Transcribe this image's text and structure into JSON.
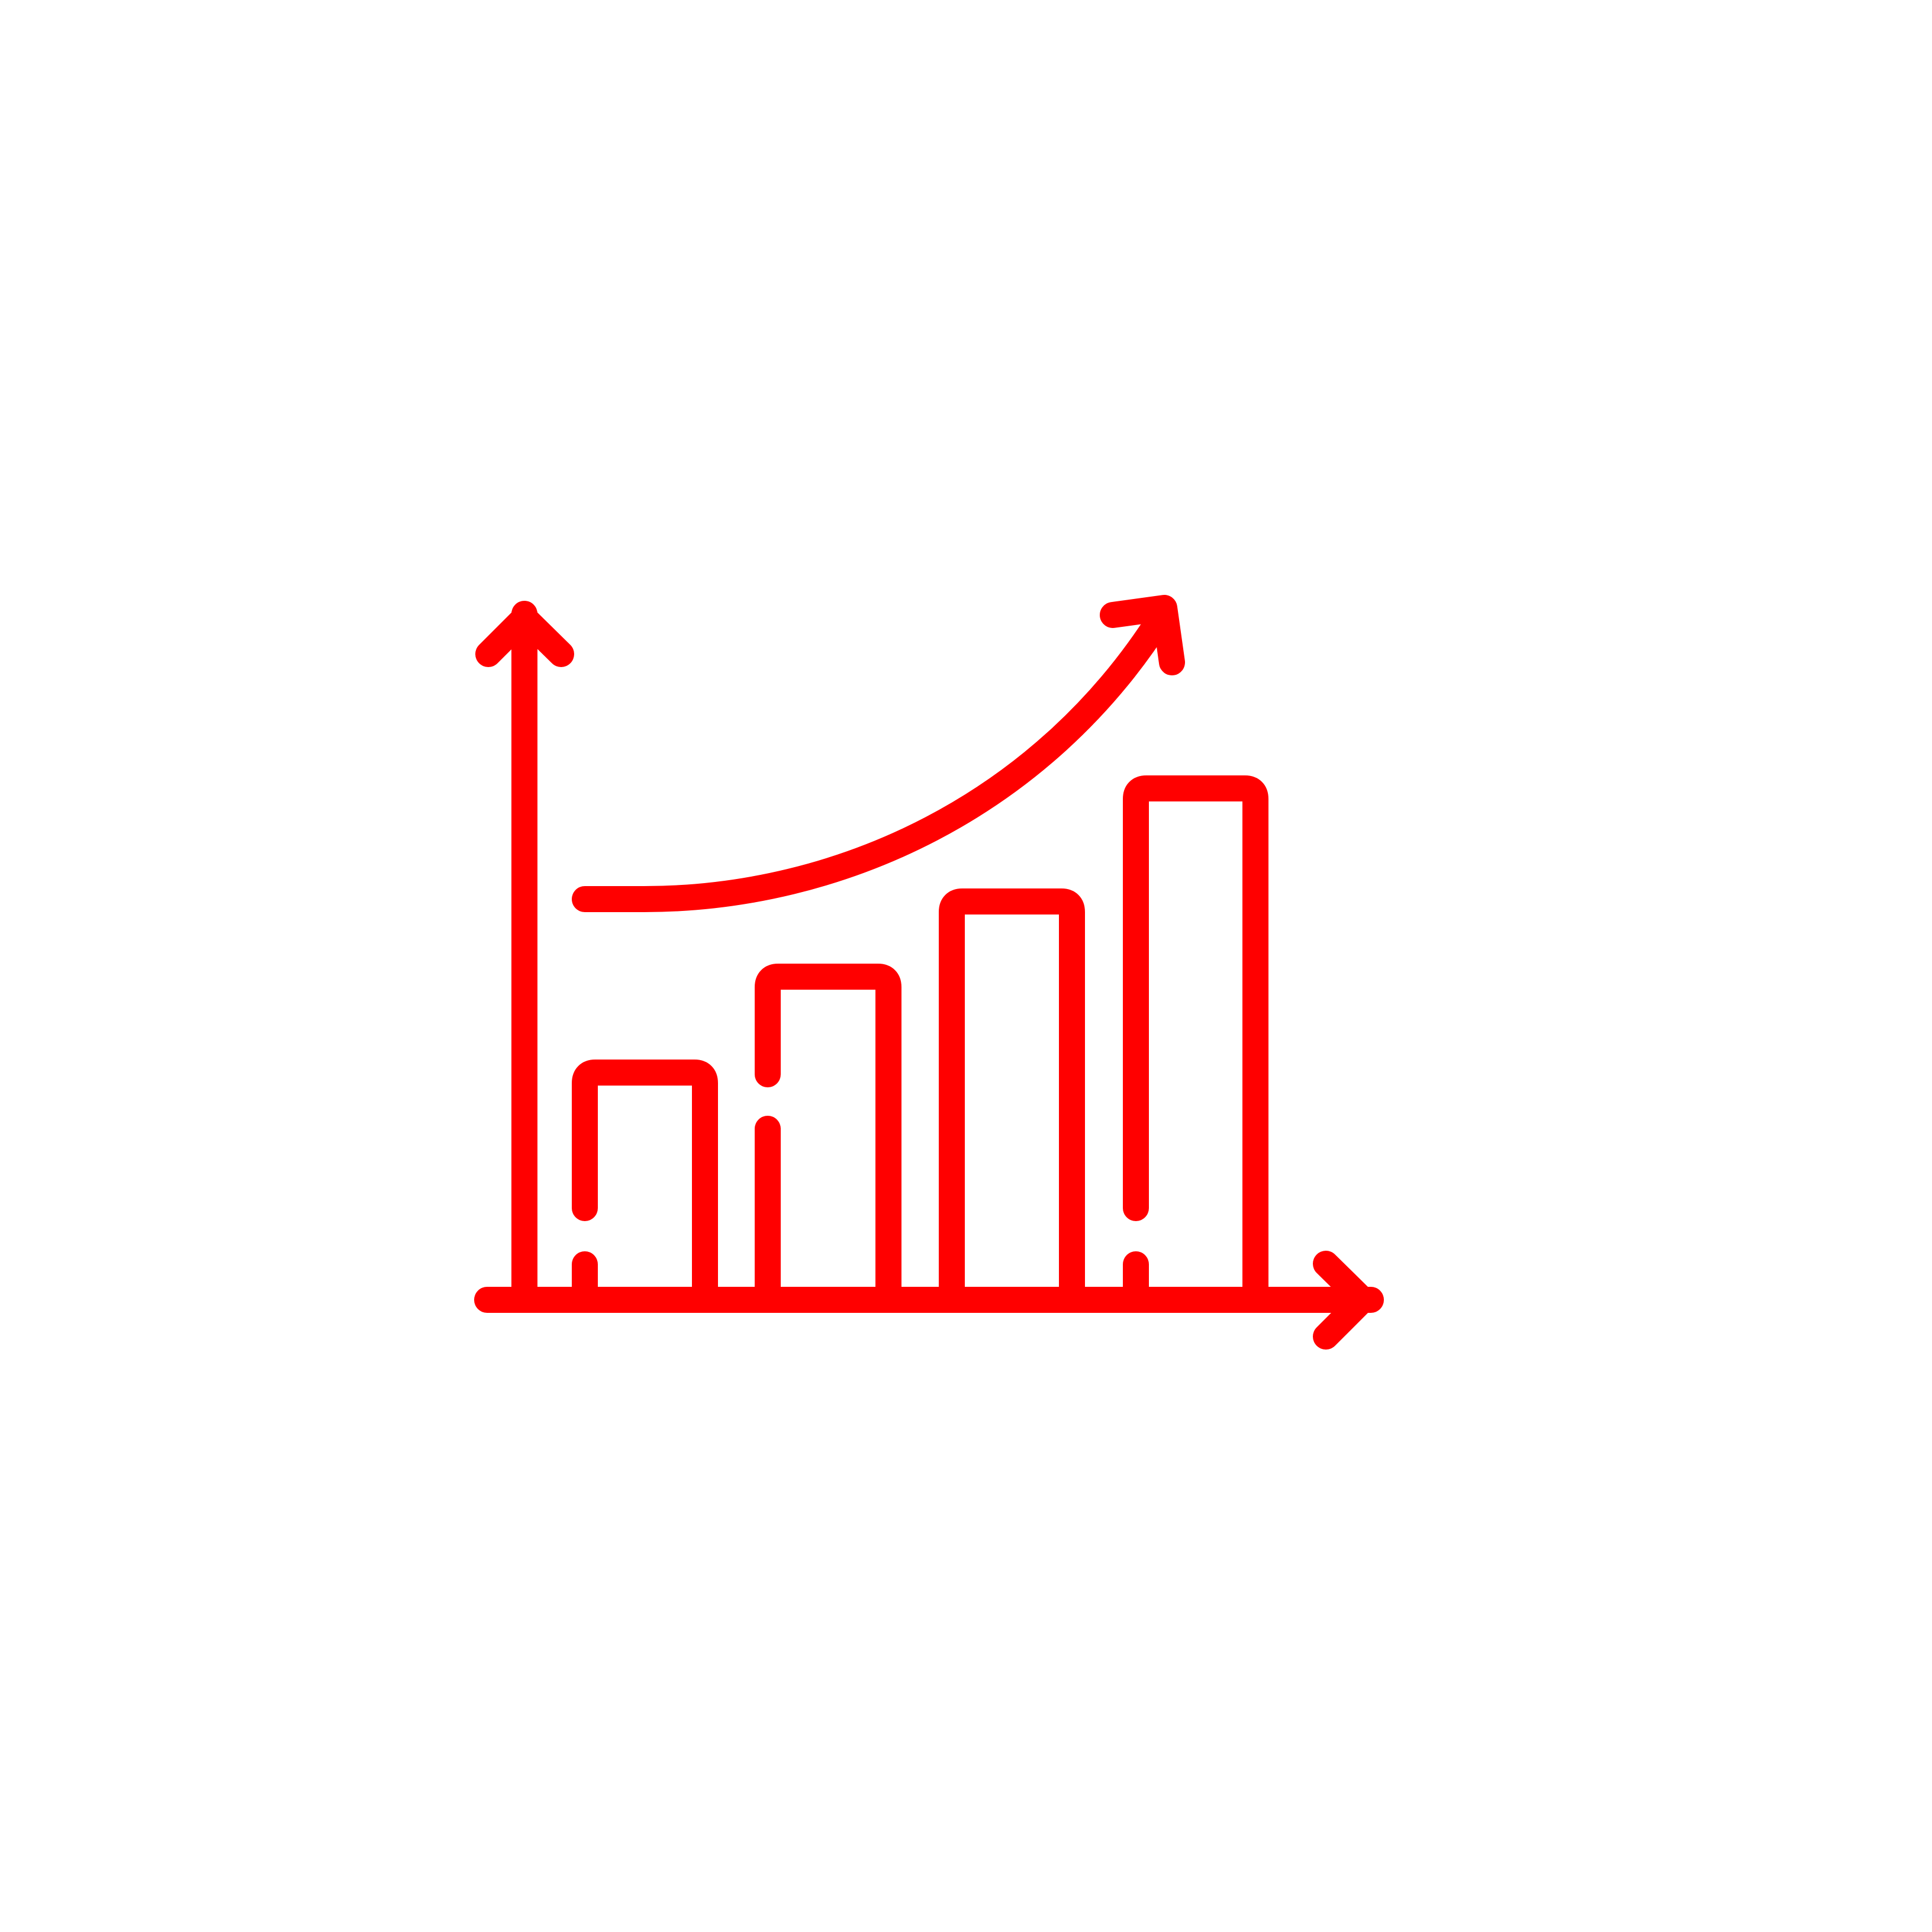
{
  "icon": {
    "name": "growth-chart-icon",
    "stroke_color": "#ff0000",
    "background_color": "#ffffff"
  }
}
